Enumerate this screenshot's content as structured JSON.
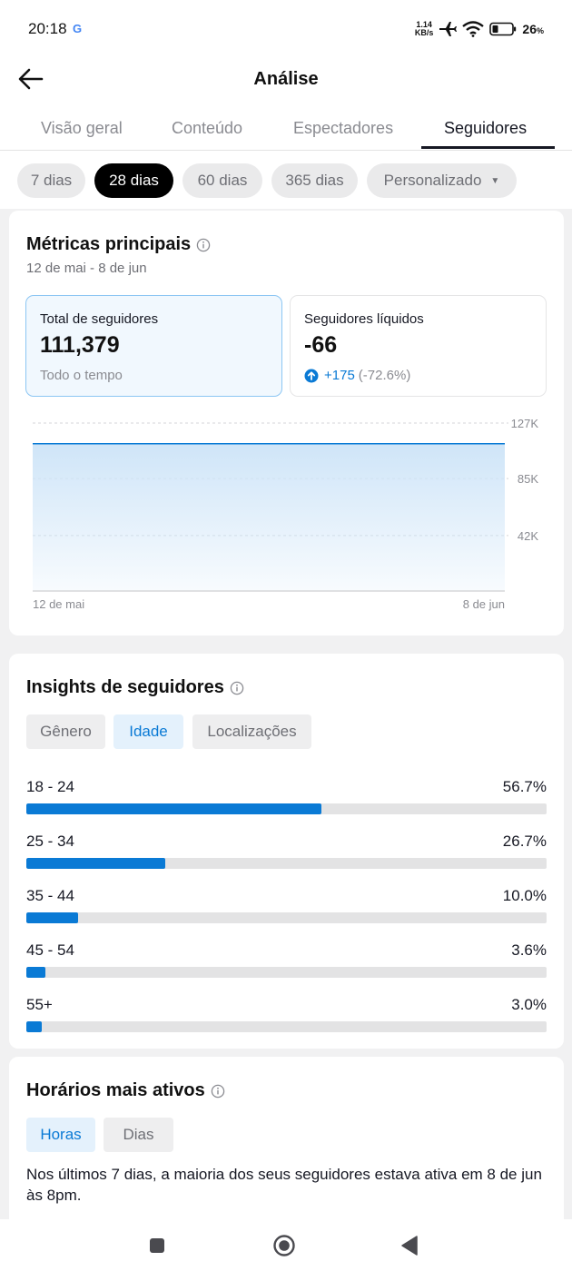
{
  "status_bar": {
    "time": "20:18",
    "net_speed_value": "1.14",
    "net_speed_unit": "KB/s",
    "battery": "26",
    "battery_unit": "%",
    "icons": [
      "google-g-icon",
      "airplane-icon",
      "wifi-icon",
      "battery-icon"
    ]
  },
  "header": {
    "title": "Análise"
  },
  "tabs": [
    {
      "label": "Visão geral"
    },
    {
      "label": "Conteúdo"
    },
    {
      "label": "Espectadores"
    },
    {
      "label": "Seguidores",
      "active": true
    }
  ],
  "date_chips": [
    {
      "label": "7 dias"
    },
    {
      "label": "28 dias",
      "active": true
    },
    {
      "label": "60 dias"
    },
    {
      "label": "365 dias"
    },
    {
      "label": "Personalizado"
    }
  ],
  "key_metrics": {
    "title": "Métricas principais",
    "date_range": "12 de mai - 8 de jun",
    "total": {
      "label": "Total de seguidores",
      "value": "111,379",
      "footnote": "Todo o tempo"
    },
    "net": {
      "label": "Seguidores líquidos",
      "value": "-66",
      "change": "+175",
      "change_pct": "(-72.6%)"
    }
  },
  "chart_data": {
    "type": "area",
    "x_labels": [
      "12 de mai",
      "8 de jun"
    ],
    "y_ticks": [
      "127K",
      "85K",
      "42K"
    ],
    "y_tick_values": [
      127000,
      85000,
      42000
    ],
    "ylim": [
      0,
      127000
    ],
    "series": [
      {
        "values": [
          111379,
          111379
        ]
      }
    ],
    "grid": true,
    "colors": {
      "line": "#0a7ad5",
      "fill": "#cfe5f8"
    }
  },
  "insights": {
    "title": "Insights de seguidores",
    "segments": [
      {
        "label": "Gênero"
      },
      {
        "label": "Idade",
        "active": true
      },
      {
        "label": "Localizações"
      }
    ],
    "age_groups": [
      {
        "label": "18 - 24",
        "pct": "56.7%",
        "value": 56.7
      },
      {
        "label": "25 - 34",
        "pct": "26.7%",
        "value": 26.7
      },
      {
        "label": "35 - 44",
        "pct": "10.0%",
        "value": 10.0
      },
      {
        "label": "45 - 54",
        "pct": "3.6%",
        "value": 3.6
      },
      {
        "label": "55+",
        "pct": "3.0%",
        "value": 3.0
      }
    ]
  },
  "active_times": {
    "title": "Horários mais ativos",
    "segments": [
      {
        "label": "Horas",
        "active": true
      },
      {
        "label": "Dias"
      }
    ],
    "text": "Nos últimos 7 dias, a maioria dos seus seguidores estava ativa em 8 de jun às 8pm."
  },
  "colors": {
    "accent": "#0a7ad5",
    "text": "#161823",
    "muted": "#6e6f75"
  }
}
